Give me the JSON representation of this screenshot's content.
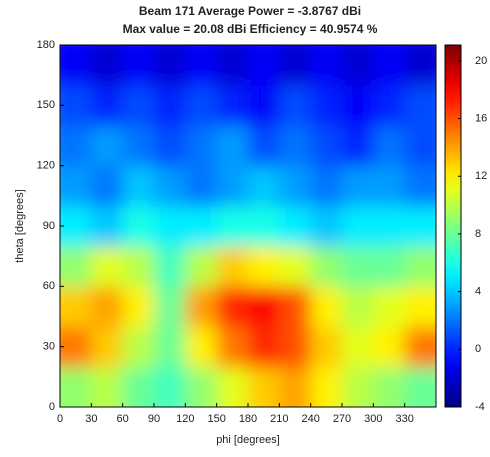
{
  "chart_data": {
    "type": "heatmap",
    "title": "Beam 171 Average Power = -3.8767 dBi",
    "subtitle": "Max value = 20.08 dBi Efficiency = 40.9574 %",
    "x_label": "phi [degrees]",
    "y_label": "theta [degrees]",
    "x": [
      15,
      45,
      75,
      105,
      135,
      165,
      195,
      225,
      255,
      285,
      315,
      345
    ],
    "y": [
      10,
      30,
      50,
      70,
      90,
      110,
      130,
      150,
      170
    ],
    "z": [
      [
        9,
        10,
        8,
        7,
        9,
        11,
        13,
        14,
        12,
        10,
        9,
        8
      ],
      [
        15,
        13,
        10,
        8,
        12,
        15,
        17,
        16,
        13,
        11,
        12,
        15
      ],
      [
        13,
        14,
        12,
        8,
        14,
        17,
        18,
        16,
        12,
        10,
        11,
        12
      ],
      [
        9,
        11,
        10,
        7,
        10,
        13,
        12,
        11,
        9,
        8,
        8,
        9
      ],
      [
        5,
        4,
        6,
        5,
        5,
        6,
        6,
        5,
        4,
        5,
        5,
        5
      ],
      [
        3,
        2,
        4,
        3,
        2,
        3,
        4,
        3,
        2,
        3,
        3,
        2
      ],
      [
        2,
        3,
        2,
        1,
        2,
        3,
        1,
        2,
        1,
        0,
        2,
        1
      ],
      [
        1,
        0,
        1,
        0,
        1,
        0,
        -1,
        1,
        0,
        -1,
        0,
        1
      ],
      [
        -1,
        -2,
        -1,
        -2,
        -1,
        -2,
        -1,
        -2,
        -1,
        -2,
        -1,
        -2
      ]
    ],
    "xlim": [
      0,
      360
    ],
    "ylim": [
      0,
      180
    ],
    "xticks": [
      0,
      30,
      60,
      90,
      120,
      150,
      180,
      210,
      240,
      270,
      300,
      330
    ],
    "yticks": [
      0,
      30,
      60,
      90,
      120,
      150,
      180
    ],
    "colormap": "jet",
    "clim": [
      -4,
      21.1
    ],
    "colorbar_ticks": [
      -4,
      0,
      4,
      8,
      12,
      16,
      20
    ]
  }
}
